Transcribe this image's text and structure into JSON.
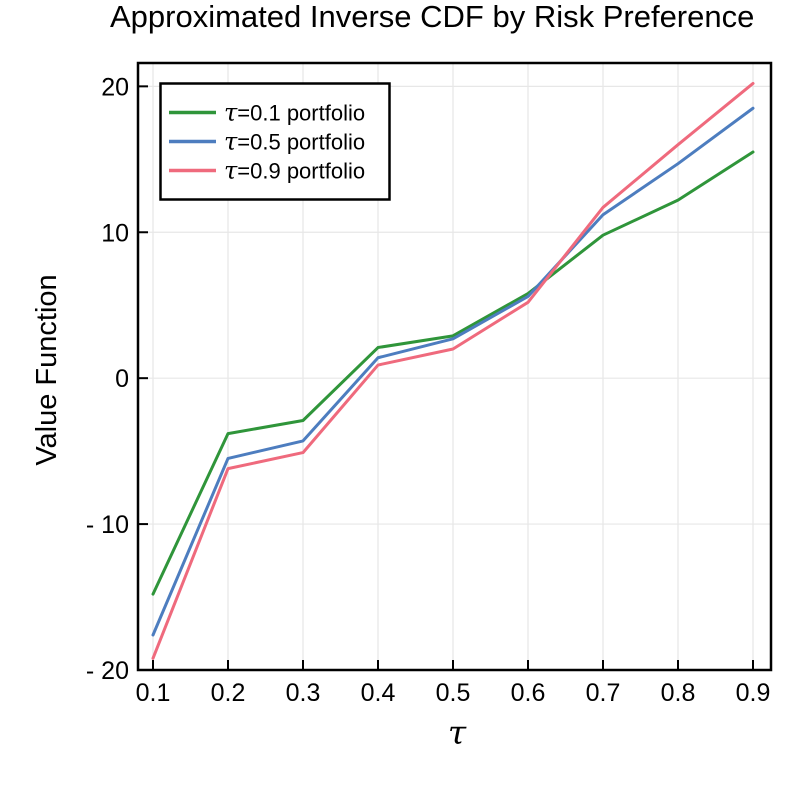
{
  "chart_data": {
    "type": "line",
    "title": "Approximated Inverse CDF by Risk Preference",
    "xlabel": "τ",
    "ylabel": "Value Function",
    "x": [
      0.1,
      0.2,
      0.3,
      0.4,
      0.5,
      0.6,
      0.7,
      0.8,
      0.9
    ],
    "series": [
      {
        "name": "τ=0.1 portfolio",
        "tau": "τ",
        "rest": "=0.1 portfolio",
        "color": "#2f953a",
        "values": [
          -14.8,
          -3.8,
          -2.9,
          2.1,
          2.9,
          5.8,
          9.8,
          12.2,
          15.5
        ]
      },
      {
        "name": "τ=0.5 portfolio",
        "tau": "τ",
        "rest": "=0.5 portfolio",
        "color": "#4d7dbf",
        "values": [
          -17.6,
          -5.5,
          -4.3,
          1.4,
          2.7,
          5.6,
          11.2,
          14.7,
          18.5
        ]
      },
      {
        "name": "τ=0.9 portfolio",
        "tau": "τ",
        "rest": "=0.9 portfolio",
        "color": "#ef6a7d",
        "values": [
          -19.2,
          -6.2,
          -5.1,
          0.9,
          2.0,
          5.2,
          11.7,
          16.0,
          20.2
        ]
      }
    ],
    "x_tick_labels": [
      "0.1",
      "0.2",
      "0.3",
      "0.4",
      "0.5",
      "0.6",
      "0.7",
      "0.8",
      "0.9"
    ],
    "x_tick_values": [
      0.1,
      0.2,
      0.3,
      0.4,
      0.5,
      0.6,
      0.7,
      0.8,
      0.9
    ],
    "y_ticks": [
      {
        "value": 20,
        "label": "20"
      },
      {
        "value": 10,
        "label": "10"
      },
      {
        "value": 0,
        "label": "0"
      },
      {
        "value": -10,
        "label": "- 10"
      },
      {
        "value": -20,
        "label": "- 20"
      }
    ],
    "xlim": [
      0.08,
      0.924
    ],
    "ylim": [
      -20,
      21.6
    ],
    "grid": true,
    "legend_position": "top-left",
    "colors": {
      "grid": "#e7e7e7",
      "frame": "#000000",
      "background": "#ffffff",
      "text": "#000000"
    }
  }
}
